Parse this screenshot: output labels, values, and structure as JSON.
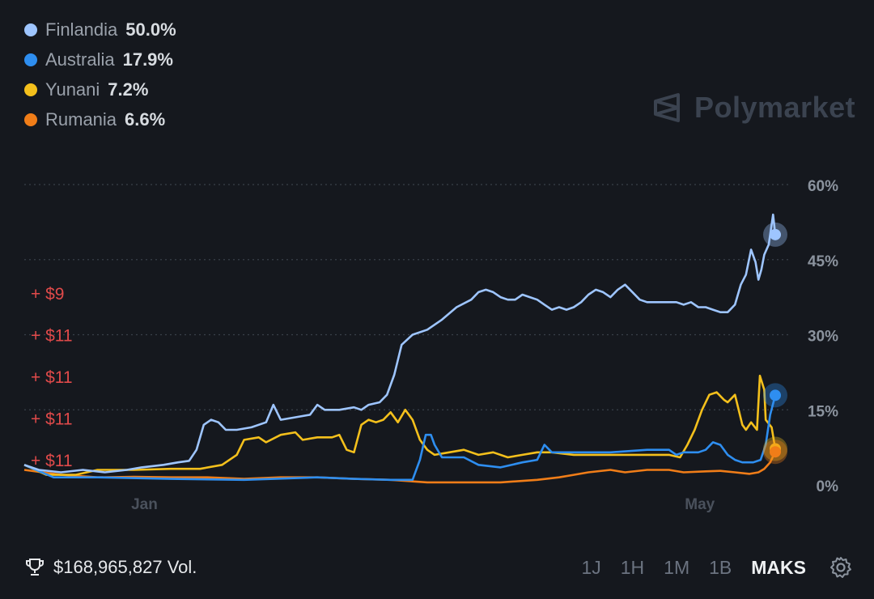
{
  "legend": [
    {
      "name": "Finlandia",
      "value": "50.0%",
      "color": "#9ec5ff"
    },
    {
      "name": "Australia",
      "value": "17.9%",
      "color": "#2e8ef0"
    },
    {
      "name": "Yunani",
      "value": "7.2%",
      "color": "#f4c01c"
    },
    {
      "name": "Rumania",
      "value": "6.6%",
      "color": "#f07d18"
    }
  ],
  "brand": {
    "name": "Polymarket"
  },
  "trades": [
    "+ $9",
    "+ $11",
    "+ $11",
    "+ $11",
    "+ $11"
  ],
  "footer": {
    "volume": "$168,965,827 Vol.",
    "ranges": [
      "1J",
      "1H",
      "1M",
      "1B",
      "MAKS"
    ],
    "active_range": "MAKS"
  },
  "chart_data": {
    "type": "line",
    "x_tick_labels": [
      "Jan",
      "May"
    ],
    "y_tick_labels": [
      "60%",
      "45%",
      "30%",
      "15%",
      "0%"
    ],
    "ylim": [
      0,
      60
    ],
    "y_ticks": [
      60,
      45,
      30,
      15,
      0
    ],
    "grid": true,
    "x_range": [
      0,
      100
    ],
    "x_ticks": [
      16.4,
      92.2
    ],
    "series": [
      {
        "name": "Finlandia",
        "color": "#9ec5ff",
        "points": [
          [
            0,
            4
          ],
          [
            2,
            3
          ],
          [
            5,
            2.5
          ],
          [
            8,
            3
          ],
          [
            11,
            2.5
          ],
          [
            14,
            3
          ],
          [
            16,
            3.5
          ],
          [
            19,
            4
          ],
          [
            21,
            4.5
          ],
          [
            22.5,
            4.8
          ],
          [
            23.5,
            7
          ],
          [
            24.5,
            12
          ],
          [
            25.5,
            13
          ],
          [
            26.5,
            12.5
          ],
          [
            27.5,
            11
          ],
          [
            29,
            11
          ],
          [
            31,
            11.5
          ],
          [
            33,
            12.5
          ],
          [
            34,
            16
          ],
          [
            35,
            13
          ],
          [
            37,
            13.5
          ],
          [
            39,
            14
          ],
          [
            40,
            16
          ],
          [
            41,
            15
          ],
          [
            43,
            15
          ],
          [
            45,
            15.5
          ],
          [
            46,
            15
          ],
          [
            47,
            16
          ],
          [
            48.5,
            16.5
          ],
          [
            49.5,
            18
          ],
          [
            50.5,
            22
          ],
          [
            51.5,
            28
          ],
          [
            53,
            30
          ],
          [
            55,
            31
          ],
          [
            57,
            33
          ],
          [
            59,
            35.5
          ],
          [
            61,
            37
          ],
          [
            62,
            38.5
          ],
          [
            63,
            39
          ],
          [
            64,
            38.5
          ],
          [
            65,
            37.5
          ],
          [
            66,
            37
          ],
          [
            67,
            37
          ],
          [
            68,
            38
          ],
          [
            69,
            37.5
          ],
          [
            70,
            37
          ],
          [
            71,
            36
          ],
          [
            72,
            35
          ],
          [
            73,
            35.5
          ],
          [
            74,
            35
          ],
          [
            75,
            35.5
          ],
          [
            76,
            36.5
          ],
          [
            77,
            38
          ],
          [
            78,
            39
          ],
          [
            79,
            38.5
          ],
          [
            80,
            37.5
          ],
          [
            81,
            39
          ],
          [
            82,
            40
          ],
          [
            83,
            38.5
          ],
          [
            84,
            37
          ],
          [
            85,
            36.5
          ],
          [
            86,
            36.5
          ],
          [
            88,
            36.5
          ],
          [
            89,
            36.5
          ],
          [
            90,
            36
          ],
          [
            91,
            36.5
          ],
          [
            92,
            35.5
          ],
          [
            93,
            35.5
          ],
          [
            94,
            35
          ],
          [
            95,
            34.5
          ],
          [
            96,
            34.5
          ],
          [
            97,
            36
          ],
          [
            97.8,
            40
          ],
          [
            98.5,
            42
          ],
          [
            99.2,
            47
          ],
          [
            99.8,
            44.5
          ],
          [
            100.2,
            41
          ],
          [
            100.6,
            43
          ],
          [
            101,
            46
          ],
          [
            101.6,
            48
          ],
          [
            102.2,
            54
          ],
          [
            102.5,
            50
          ]
        ]
      },
      {
        "name": "Australia",
        "color": "#2e8ef0",
        "points": [
          [
            0,
            4
          ],
          [
            4,
            1.5
          ],
          [
            10,
            1.5
          ],
          [
            20,
            1.2
          ],
          [
            30,
            1
          ],
          [
            40,
            1.5
          ],
          [
            45,
            1.2
          ],
          [
            50,
            1
          ],
          [
            53,
            1
          ],
          [
            54,
            5
          ],
          [
            54.8,
            10
          ],
          [
            55.5,
            10
          ],
          [
            56,
            8
          ],
          [
            57,
            5.5
          ],
          [
            60,
            5.5
          ],
          [
            62,
            4
          ],
          [
            65,
            3.5
          ],
          [
            68,
            4.5
          ],
          [
            70,
            5
          ],
          [
            71,
            8
          ],
          [
            72,
            6.5
          ],
          [
            75,
            6.5
          ],
          [
            80,
            6.5
          ],
          [
            85,
            7
          ],
          [
            88,
            7
          ],
          [
            89,
            6
          ],
          [
            90,
            6.5
          ],
          [
            92,
            6.5
          ],
          [
            93,
            7
          ],
          [
            94,
            8.5
          ],
          [
            95,
            8
          ],
          [
            96,
            6
          ],
          [
            97,
            5
          ],
          [
            98,
            4.5
          ],
          [
            99.5,
            4.5
          ],
          [
            100.5,
            5
          ],
          [
            101.2,
            8
          ],
          [
            101.8,
            14
          ],
          [
            102.5,
            17.9
          ]
        ]
      },
      {
        "name": "Yunani",
        "color": "#f4c01c",
        "points": [
          [
            0,
            4
          ],
          [
            3,
            2
          ],
          [
            7,
            2
          ],
          [
            10,
            3
          ],
          [
            15,
            3
          ],
          [
            20,
            3.2
          ],
          [
            24,
            3.2
          ],
          [
            27,
            4
          ],
          [
            29,
            6
          ],
          [
            30,
            9
          ],
          [
            32,
            9.5
          ],
          [
            33,
            8.5
          ],
          [
            35,
            10
          ],
          [
            37,
            10.5
          ],
          [
            38,
            9
          ],
          [
            40,
            9.5
          ],
          [
            42,
            9.5
          ],
          [
            43,
            10
          ],
          [
            44,
            7
          ],
          [
            45,
            6.5
          ],
          [
            46,
            12
          ],
          [
            47,
            13
          ],
          [
            48,
            12.5
          ],
          [
            49,
            13
          ],
          [
            50,
            14.5
          ],
          [
            51,
            12.5
          ],
          [
            52,
            15
          ],
          [
            53,
            13
          ],
          [
            54,
            9
          ],
          [
            55,
            7
          ],
          [
            56,
            6
          ],
          [
            58,
            6.5
          ],
          [
            60,
            7
          ],
          [
            62,
            6
          ],
          [
            64,
            6.5
          ],
          [
            66,
            5.5
          ],
          [
            68,
            6
          ],
          [
            70,
            6.5
          ],
          [
            72,
            6.5
          ],
          [
            75,
            6
          ],
          [
            80,
            6
          ],
          [
            85,
            6
          ],
          [
            88,
            6
          ],
          [
            89.5,
            5.5
          ],
          [
            90.5,
            8
          ],
          [
            91.5,
            11
          ],
          [
            92.5,
            15
          ],
          [
            93.5,
            18
          ],
          [
            94.5,
            18.5
          ],
          [
            95.5,
            17
          ],
          [
            96,
            16.5
          ],
          [
            97,
            18
          ],
          [
            98,
            12
          ],
          [
            98.5,
            11
          ],
          [
            99.2,
            12.5
          ],
          [
            100,
            11
          ],
          [
            100.4,
            21.8
          ],
          [
            101,
            19
          ],
          [
            101.2,
            13
          ],
          [
            102,
            11.5
          ],
          [
            102.5,
            7.2
          ]
        ]
      },
      {
        "name": "Rumania",
        "color": "#f07d18",
        "points": [
          [
            0,
            3
          ],
          [
            5,
            2
          ],
          [
            10,
            1.5
          ],
          [
            15,
            1.6
          ],
          [
            20,
            1.5
          ],
          [
            25,
            1.5
          ],
          [
            30,
            1.2
          ],
          [
            35,
            1.5
          ],
          [
            40,
            1.5
          ],
          [
            45,
            1.2
          ],
          [
            50,
            1
          ],
          [
            55,
            0.5
          ],
          [
            60,
            0.5
          ],
          [
            65,
            0.5
          ],
          [
            70,
            1
          ],
          [
            73,
            1.5
          ],
          [
            75,
            2
          ],
          [
            77,
            2.5
          ],
          [
            80,
            3
          ],
          [
            82,
            2.5
          ],
          [
            85,
            3
          ],
          [
            88,
            3
          ],
          [
            90,
            2.5
          ],
          [
            93,
            2.7
          ],
          [
            95,
            2.8
          ],
          [
            97,
            2.5
          ],
          [
            99,
            2.2
          ],
          [
            100.2,
            2.5
          ],
          [
            101,
            3.2
          ],
          [
            101.8,
            4.5
          ],
          [
            102.5,
            6.6
          ]
        ]
      }
    ]
  }
}
